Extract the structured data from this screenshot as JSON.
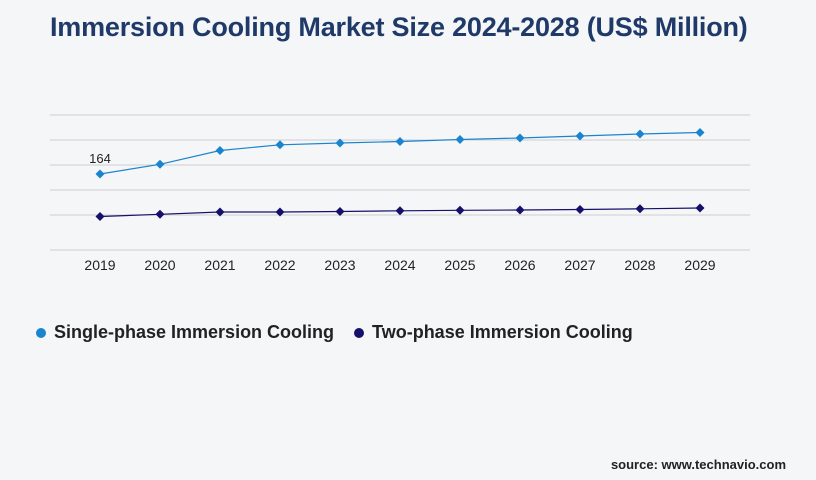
{
  "title": "Immersion Cooling Market Size 2024-2028 (US$ Million)",
  "source": "source: www.technavio.com",
  "colors": {
    "series1": "#1b84cf",
    "series2": "#15106a",
    "grid": "#cfcfcf"
  },
  "chart_data": {
    "type": "line",
    "title": "Immersion Cooling Market Size 2024-2028 (US$ Million)",
    "x": [
      "2019",
      "2020",
      "2021",
      "2022",
      "2023",
      "2024",
      "2025",
      "2026",
      "2027",
      "2028",
      "2029"
    ],
    "ylim": [
      -140,
      420
    ],
    "grid": true,
    "gridlines": [
      0,
      100,
      200,
      300,
      400
    ],
    "legend_position": "bottom-left",
    "series": [
      {
        "name": "Single-phase Immersion Cooling",
        "values": [
          164,
          203,
          258,
          281,
          288,
          294,
          302,
          308,
          316,
          324,
          330
        ],
        "data_labels": [
          "164",
          "",
          "",
          "",
          "",
          "",
          "",
          "",
          "",
          "",
          ""
        ]
      },
      {
        "name": "Two-phase Immersion Cooling",
        "values": [
          -6,
          3,
          12,
          12,
          14,
          17,
          19,
          20,
          22,
          25,
          28
        ],
        "data_labels": [
          "",
          "",
          "",
          "",
          "",
          "",
          "",
          "",
          "",
          "",
          ""
        ]
      }
    ]
  }
}
